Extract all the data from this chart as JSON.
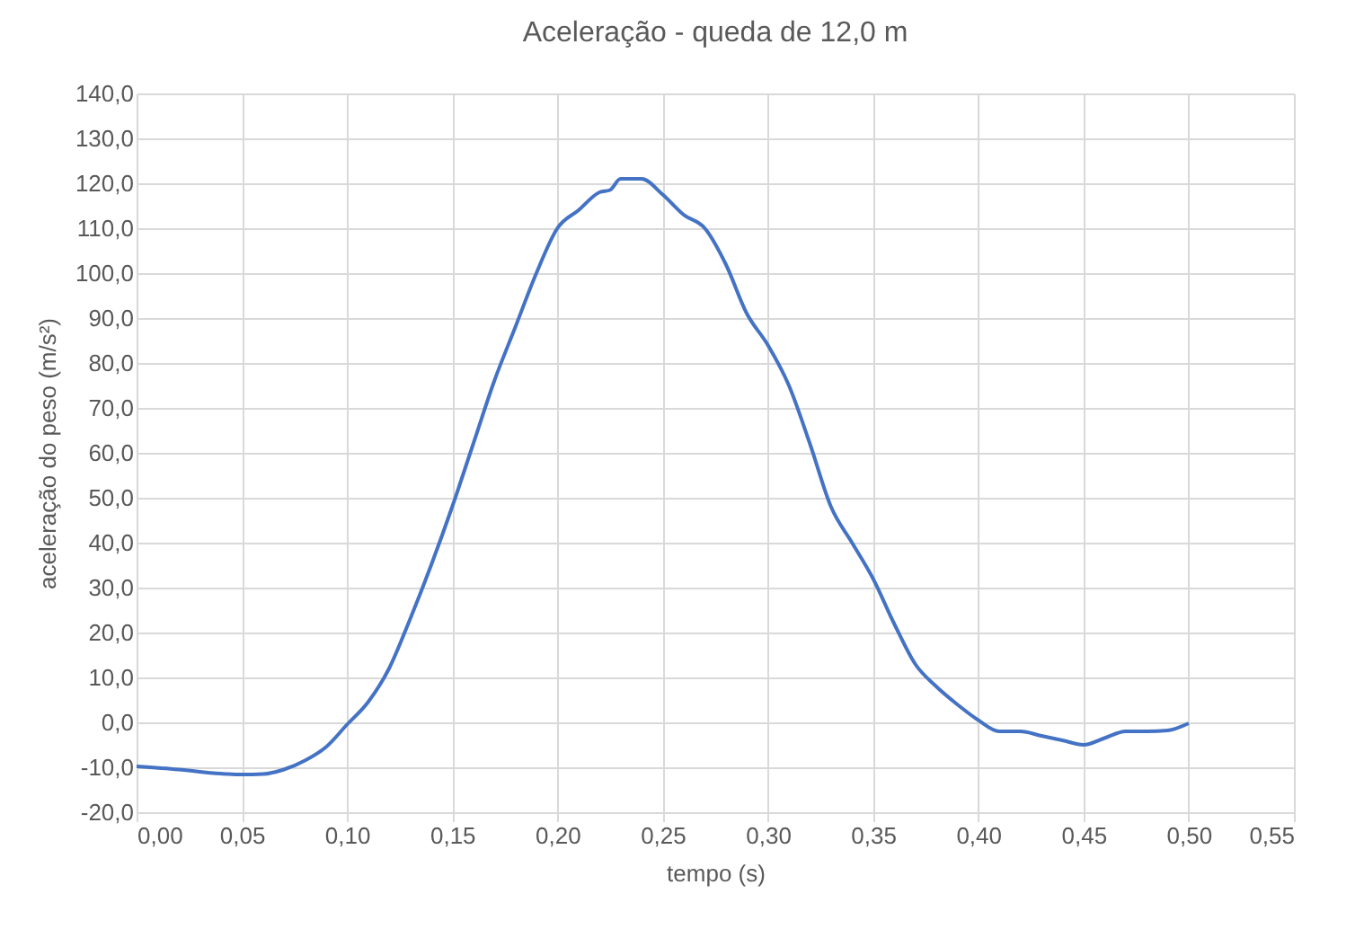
{
  "chart_data": {
    "type": "line",
    "title": "Aceleração - queda de 12,0 m",
    "xlabel": "tempo (s)",
    "ylabel": "aceleração do peso (m/s²)",
    "x": [
      0,
      0.02,
      0.04,
      0.05,
      0.06,
      0.07,
      0.08,
      0.09,
      0.1,
      0.11,
      0.12,
      0.13,
      0.14,
      0.15,
      0.16,
      0.17,
      0.18,
      0.19,
      0.2,
      0.21,
      0.22,
      0.225,
      0.23,
      0.24,
      0.25,
      0.26,
      0.27,
      0.28,
      0.29,
      0.3,
      0.31,
      0.32,
      0.33,
      0.34,
      0.35,
      0.36,
      0.37,
      0.38,
      0.39,
      0.4,
      0.41,
      0.42,
      0.43,
      0.44,
      0.45,
      0.46,
      0.47,
      0.48,
      0.49,
      0.5
    ],
    "series": [
      {
        "color": "#4472c4",
        "values": [
          -9.8,
          -10.5,
          -11.4,
          -11.6,
          -11.5,
          -10.5,
          -8.5,
          -5.5,
          -0.5,
          4.5,
          12,
          23,
          35,
          48,
          62,
          76,
          88,
          100,
          110,
          114,
          118,
          118.5,
          121,
          121,
          117.5,
          113,
          110,
          102,
          91,
          84,
          75,
          62,
          48,
          40,
          32,
          22,
          13,
          8,
          4,
          0.5,
          -2,
          -2,
          -3,
          -4,
          -5,
          -3.5,
          -2,
          -2,
          -1.8,
          -0.2
        ]
      }
    ],
    "xlim": [
      0,
      0.55
    ],
    "ylim": [
      -20,
      140
    ],
    "xticks": [
      {
        "value": 0,
        "label": "0,00"
      },
      {
        "value": 0.05,
        "label": "0,05"
      },
      {
        "value": 0.1,
        "label": "0,10"
      },
      {
        "value": 0.15,
        "label": "0,15"
      },
      {
        "value": 0.2,
        "label": "0,20"
      },
      {
        "value": 0.25,
        "label": "0,25"
      },
      {
        "value": 0.3,
        "label": "0,30"
      },
      {
        "value": 0.35,
        "label": "0,35"
      },
      {
        "value": 0.4,
        "label": "0,40"
      },
      {
        "value": 0.45,
        "label": "0,45"
      },
      {
        "value": 0.5,
        "label": "0,50"
      },
      {
        "value": 0.55,
        "label": "0,55"
      }
    ],
    "yticks": [
      {
        "value": -20,
        "label": "-20,0"
      },
      {
        "value": -10,
        "label": "-10,0"
      },
      {
        "value": 0,
        "label": "0,0"
      },
      {
        "value": 10,
        "label": "10,0"
      },
      {
        "value": 20,
        "label": "20,0"
      },
      {
        "value": 30,
        "label": "30,0"
      },
      {
        "value": 40,
        "label": "40,0"
      },
      {
        "value": 50,
        "label": "50,0"
      },
      {
        "value": 60,
        "label": "60,0"
      },
      {
        "value": 70,
        "label": "70,0"
      },
      {
        "value": 80,
        "label": "80,0"
      },
      {
        "value": 90,
        "label": "90,0"
      },
      {
        "value": 100,
        "label": "100,0"
      },
      {
        "value": 110,
        "label": "110,0"
      },
      {
        "value": 120,
        "label": "120,0"
      },
      {
        "value": 130,
        "label": "130,0"
      },
      {
        "value": 140,
        "label": "140,0"
      }
    ],
    "grid": true,
    "marker": "none",
    "line_style": "solid"
  }
}
